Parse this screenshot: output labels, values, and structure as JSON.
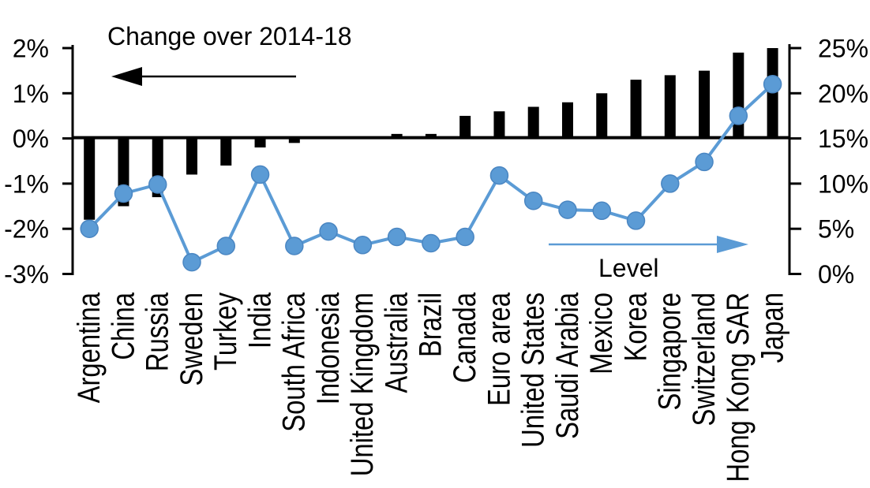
{
  "chart_data": {
    "type": "bar",
    "subtype": "dual-axis bar with line overlay",
    "categories": [
      "Argentina",
      "China",
      "Russia",
      "Sweden",
      "Turkey",
      "India",
      "South Africa",
      "Indonesia",
      "United Kingdom",
      "Australia",
      "Brazil",
      "Canada",
      "Euro area",
      "United States",
      "Saudi Arabia",
      "Mexico",
      "Korea",
      "Singapore",
      "Switzerland",
      "Hong Kong SAR",
      "Japan"
    ],
    "series": [
      {
        "name": "Change over 2014-18",
        "type": "bar",
        "axis": "left",
        "color": "#000000",
        "values": [
          -1.8,
          -1.5,
          -1.3,
          -0.8,
          -0.6,
          -0.2,
          -0.1,
          0,
          0,
          0.1,
          0.1,
          0.5,
          0.6,
          0.7,
          0.8,
          1.0,
          1.3,
          1.4,
          1.5,
          1.9,
          2.0
        ]
      },
      {
        "name": "Level",
        "type": "line",
        "axis": "right",
        "color": "#5B9BD5",
        "values": [
          5.0,
          8.9,
          9.9,
          1.3,
          3.1,
          11.0,
          3.1,
          4.7,
          3.2,
          4.1,
          3.4,
          4.1,
          10.9,
          8.1,
          7.1,
          7.0,
          5.9,
          10.0,
          12.4,
          17.5,
          21.0
        ]
      }
    ],
    "left_axis": {
      "tick_labels": [
        "2%",
        "1%",
        "0%",
        "-1%",
        "-2%",
        "-3%"
      ],
      "max": 2,
      "min": -3,
      "unit": "%"
    },
    "right_axis": {
      "tick_labels": [
        "25%",
        "20%",
        "15%",
        "10%",
        "5%",
        "0%"
      ],
      "max": 25,
      "min": 0,
      "unit": "%"
    },
    "annotations": {
      "change_label": "Change over 2014-18",
      "level_label": "Level"
    },
    "legend_position": "none",
    "grid": false
  },
  "colors": {
    "bar": "#000000",
    "line": "#5B9BD5",
    "background": "#FFFFFF",
    "text": "#000000"
  }
}
